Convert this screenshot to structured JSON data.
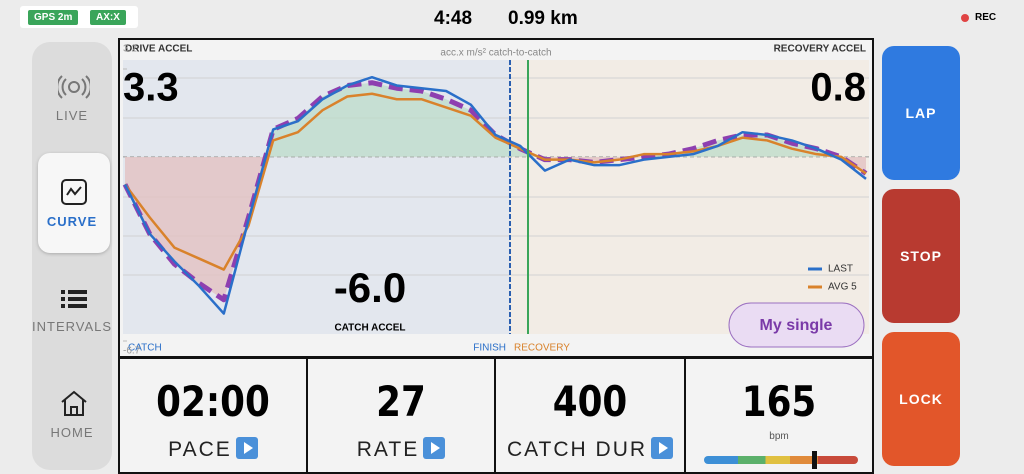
{
  "status": {
    "gps": "GPS 2m",
    "ax": "AX:X",
    "time": "4:48",
    "distance": "0.99 km",
    "rec": "REC"
  },
  "nav": [
    {
      "label": "LIVE"
    },
    {
      "label": "CURVE"
    },
    {
      "label": "INTERVALS"
    },
    {
      "label": "HOME"
    }
  ],
  "chart_data": {
    "type": "line",
    "title": "acc.x m/s² catch-to-catch",
    "drive_label": "DRIVE ACCEL",
    "drive_value": "3.3",
    "recovery_label": "RECOVERY ACCEL",
    "recovery_value": "0.8",
    "catch_value": "-6.0",
    "catch_label": "CATCH ACCEL",
    "phase_labels": {
      "catch": "CATCH",
      "finish": "FINISH",
      "recovery": "RECOVERY"
    },
    "button": "My single",
    "ylim": [
      -6.7,
      3.2
    ],
    "yticks": [
      -6.7,
      3.2
    ],
    "series": [
      {
        "color": "#8e3fb0",
        "values": [
          -1.0,
          -2.8,
          -3.9,
          -4.6,
          -5.2,
          -2.2,
          1.0,
          1.4,
          2.2,
          2.6,
          2.7,
          2.5,
          2.4,
          2.1,
          1.7,
          0.8,
          0.3,
          -0.1,
          -0.1,
          -0.2,
          -0.1,
          0,
          0.1,
          0.3,
          0.6,
          0.8,
          0.8,
          0.5,
          0.3,
          0,
          -0.6
        ]
      },
      {
        "name": "AVG 5",
        "color": "#d9822b",
        "values": [
          -1.0,
          -2.2,
          -3.3,
          -3.7,
          -4.1,
          -2.5,
          0.6,
          0.9,
          1.7,
          2.2,
          2.3,
          2.1,
          2.1,
          1.8,
          1.5,
          0.7,
          0.3,
          -0.1,
          -0.1,
          -0.2,
          -0.1,
          0.1,
          0.1,
          0.2,
          0.4,
          0.7,
          0.6,
          0.3,
          0.1,
          0,
          -0.6
        ]
      },
      {
        "name": "LAST",
        "color": "#2a6fc9",
        "values": [
          -1.0,
          -2.8,
          -3.8,
          -4.7,
          -5.7,
          -2.3,
          1.0,
          1.3,
          2.1,
          2.6,
          2.9,
          2.6,
          2.5,
          2.4,
          1.9,
          0.8,
          0.4,
          -0.5,
          -0.1,
          -0.3,
          -0.3,
          -0.1,
          0,
          0.1,
          0.4,
          0.9,
          0.8,
          0.6,
          0.3,
          -0.1,
          -0.8
        ]
      }
    ]
  },
  "metrics": [
    {
      "value": "02:00",
      "label": "PACE"
    },
    {
      "value": "27",
      "label": "RATE"
    },
    {
      "value": "400",
      "label": "CATCH DUR"
    },
    {
      "value": "165",
      "unit": "bpm"
    }
  ],
  "buttons": [
    "LAP",
    "STOP",
    "LOCK"
  ]
}
